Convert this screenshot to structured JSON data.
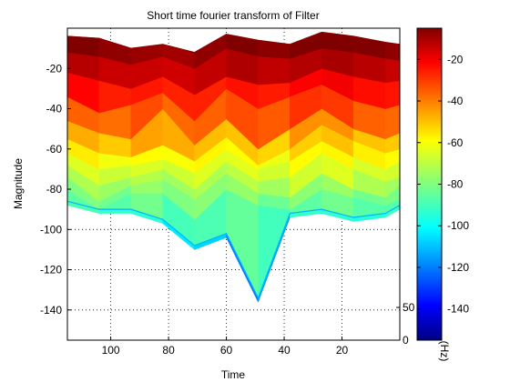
{
  "chart_data": {
    "type": "area",
    "title": "Short time fourier transform of Filter",
    "xlabel": "Time",
    "ylabel": "Magnitude",
    "xlim": [
      115,
      0
    ],
    "ylim": [
      -155,
      0
    ],
    "x_reversed": true,
    "grid": true,
    "grid_style": "dotted",
    "x_ticks": [
      100,
      80,
      60,
      40,
      20
    ],
    "y_ticks": [
      -20,
      -40,
      -60,
      -80,
      -100,
      -120,
      -140
    ],
    "time": [
      115,
      104,
      93,
      82,
      71,
      60,
      49,
      38,
      27,
      16,
      5,
      0
    ],
    "series": [
      {
        "values": [
          -4,
          -5,
          -10,
          -8,
          -12,
          -3,
          -6,
          -8,
          -2,
          -4,
          -7,
          -8
        ]
      },
      {
        "values": [
          -12,
          -14,
          -18,
          -14,
          -20,
          -10,
          -14,
          -15,
          -10,
          -12,
          -15,
          -16
        ]
      },
      {
        "values": [
          -22,
          -26,
          -30,
          -24,
          -33,
          -24,
          -28,
          -27,
          -20,
          -24,
          -27,
          -26
        ]
      },
      {
        "values": [
          -34,
          -42,
          -38,
          -32,
          -46,
          -30,
          -40,
          -34,
          -28,
          -36,
          -40,
          -38
        ]
      },
      {
        "values": [
          -46,
          -52,
          -55,
          -40,
          -58,
          -45,
          -60,
          -50,
          -40,
          -50,
          -55,
          -52
        ]
      },
      {
        "values": [
          -55,
          -62,
          -64,
          -58,
          -66,
          -54,
          -68,
          -60,
          -48,
          -56,
          -62,
          -60
        ]
      },
      {
        "values": [
          -62,
          -70,
          -68,
          -65,
          -72,
          -60,
          -70,
          -66,
          -56,
          -64,
          -70,
          -66
        ]
      },
      {
        "values": [
          -68,
          -78,
          -74,
          -70,
          -80,
          -66,
          -76,
          -74,
          -62,
          -70,
          -76,
          -74
        ]
      },
      {
        "values": [
          -74,
          -86,
          -78,
          -75,
          -85,
          -72,
          -82,
          -84,
          -72,
          -80,
          -84,
          -78
        ]
      },
      {
        "values": [
          -80,
          -90,
          -82,
          -82,
          -95,
          -80,
          -88,
          -90,
          -80,
          -84,
          -88,
          -85
        ]
      },
      {
        "values": [
          -86,
          -90,
          -90,
          -95,
          -108,
          -102,
          -134,
          -92,
          -90,
          -94,
          -92,
          -88
        ]
      }
    ],
    "color_scale": {
      "type": "colorbar",
      "label": "(Hz)",
      "range": [
        -155,
        -5
      ],
      "ticks": [
        -20,
        -40,
        -60,
        -80,
        -100,
        -120,
        -140
      ],
      "colormap": "jet"
    },
    "z_axis": {
      "ticks": [
        0,
        50
      ]
    },
    "colors": {
      "background": "#ffffff",
      "axes": "#000000"
    }
  }
}
